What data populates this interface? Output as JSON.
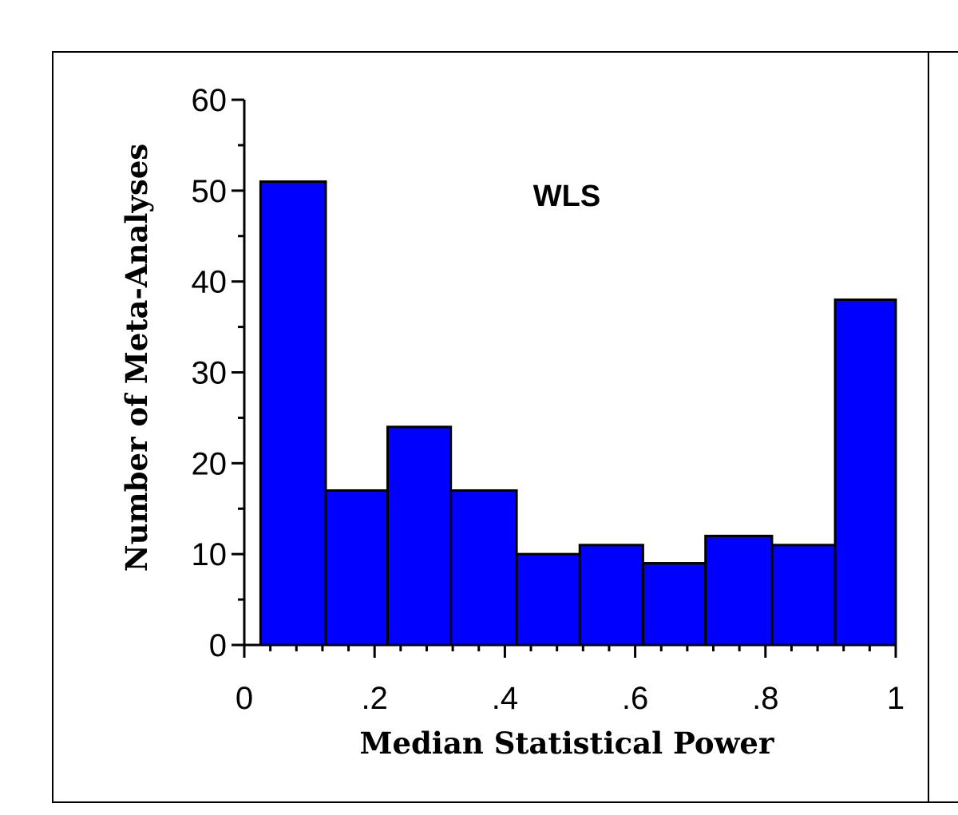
{
  "chart_data": {
    "type": "bar",
    "title": "WLS",
    "xlabel": "Median Statistical Power",
    "ylabel": "Number of Meta-Analyses",
    "bins": [
      {
        "start": 0.025,
        "end": 0.125,
        "value": 51
      },
      {
        "start": 0.125,
        "end": 0.22,
        "value": 17
      },
      {
        "start": 0.22,
        "end": 0.317,
        "value": 24
      },
      {
        "start": 0.317,
        "end": 0.418,
        "value": 17
      },
      {
        "start": 0.418,
        "end": 0.515,
        "value": 10
      },
      {
        "start": 0.515,
        "end": 0.612,
        "value": 11
      },
      {
        "start": 0.612,
        "end": 0.708,
        "value": 9
      },
      {
        "start": 0.708,
        "end": 0.81,
        "value": 12
      },
      {
        "start": 0.81,
        "end": 0.907,
        "value": 11
      },
      {
        "start": 0.907,
        "end": 1.0,
        "value": 38
      }
    ],
    "xlim": [
      0,
      1
    ],
    "ylim": [
      0,
      60
    ],
    "x_ticks": [
      0,
      0.2,
      0.4,
      0.6,
      0.8,
      1
    ],
    "x_tick_labels": [
      "0",
      ".2",
      ".4",
      ".6",
      ".8",
      "1"
    ],
    "y_ticks": [
      0,
      10,
      20,
      30,
      40,
      50,
      60
    ],
    "y_tick_labels": [
      "0",
      "10",
      "20",
      "30",
      "40",
      "50",
      "60"
    ],
    "bar_color": "#0000ff",
    "grid": false
  }
}
